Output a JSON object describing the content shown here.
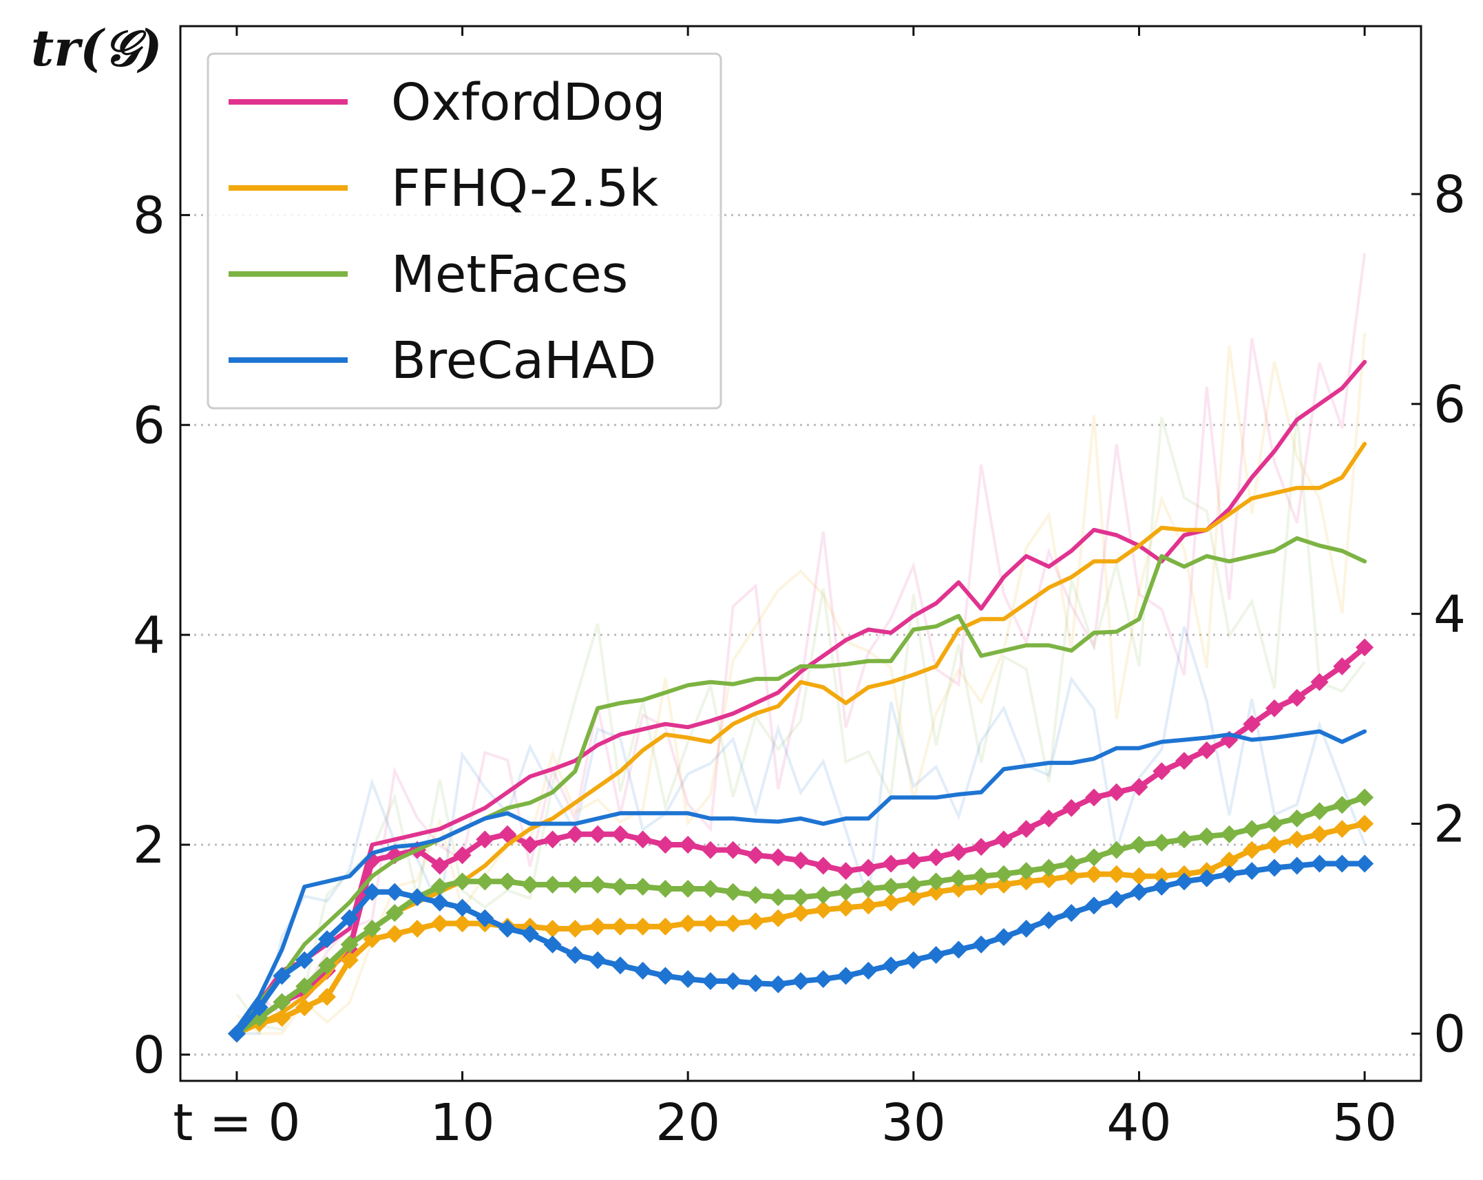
{
  "chart_data": {
    "type": "line",
    "ylabel": "tr(𝒢)",
    "x_tick_labels": [
      "t = 0",
      "10",
      "20",
      "30",
      "40",
      "50"
    ],
    "x_ticks": [
      0,
      10,
      20,
      30,
      40,
      50
    ],
    "xlim": [
      -2.5,
      52.5
    ],
    "y_left_ticks": [
      0,
      2,
      4,
      6,
      8
    ],
    "y_left_tick_labels": [
      "0",
      "2",
      "4",
      "6",
      "8"
    ],
    "ylim_left": [
      -0.25,
      9.8
    ],
    "y_right_ticks": [
      0,
      2,
      4,
      6,
      8
    ],
    "y_right_tick_labels": [
      "0",
      "2",
      "4",
      "6",
      "8"
    ],
    "ylim_right": [
      -0.45,
      9.6
    ],
    "grid": "horizontal dotted at y ticks",
    "legend_position": "top-left",
    "series": [
      {
        "name": "OxfordDog",
        "color": "#e0338f",
        "axis": "left",
        "values": [
          0.2,
          0.35,
          0.5,
          0.6,
          0.8,
          1.0,
          1.85,
          1.9,
          1.95,
          1.8,
          1.9,
          2.05,
          2.1,
          2.0,
          2.05,
          2.1,
          2.1,
          2.1,
          2.05,
          2.0,
          2.0,
          1.95,
          1.95,
          1.9,
          1.88,
          1.85,
          1.8,
          1.75,
          1.78,
          1.82,
          1.85,
          1.88,
          1.93,
          1.98,
          2.05,
          2.15,
          2.25,
          2.35,
          2.45,
          2.5,
          2.55,
          2.7,
          2.8,
          2.9,
          3.0,
          3.15,
          3.3,
          3.4,
          3.55,
          3.7,
          3.88
        ]
      },
      {
        "name": "OxfordDog",
        "color": "#e0338f",
        "axis": "right",
        "values": [
          0.05,
          0.3,
          0.6,
          0.7,
          0.85,
          1.0,
          1.8,
          1.85,
          1.9,
          1.95,
          2.05,
          2.15,
          2.3,
          2.45,
          2.52,
          2.6,
          2.75,
          2.85,
          2.9,
          2.95,
          2.92,
          2.98,
          3.05,
          3.15,
          3.25,
          3.45,
          3.6,
          3.75,
          3.85,
          3.82,
          3.98,
          4.1,
          4.3,
          4.05,
          4.35,
          4.55,
          4.45,
          4.6,
          4.8,
          4.75,
          4.65,
          4.5,
          4.75,
          4.8,
          5.0,
          5.3,
          5.55,
          5.85,
          6.0,
          6.15,
          6.4
        ]
      },
      {
        "name": "FFHQ-2.5k",
        "color": "#f2a80d",
        "axis": "left",
        "values": [
          0.2,
          0.3,
          0.35,
          0.45,
          0.55,
          0.9,
          1.1,
          1.15,
          1.2,
          1.25,
          1.25,
          1.25,
          1.22,
          1.22,
          1.2,
          1.2,
          1.22,
          1.22,
          1.22,
          1.22,
          1.25,
          1.25,
          1.25,
          1.27,
          1.3,
          1.35,
          1.38,
          1.4,
          1.42,
          1.45,
          1.5,
          1.55,
          1.58,
          1.6,
          1.62,
          1.65,
          1.67,
          1.7,
          1.72,
          1.72,
          1.7,
          1.7,
          1.72,
          1.75,
          1.85,
          1.95,
          2.0,
          2.05,
          2.1,
          2.15,
          2.2
        ]
      },
      {
        "name": "FFHQ-2.5k",
        "color": "#f2a80d",
        "axis": "right",
        "values": [
          0.05,
          0.1,
          0.2,
          0.35,
          0.55,
          0.85,
          1.0,
          1.15,
          1.25,
          1.35,
          1.45,
          1.6,
          1.8,
          1.95,
          2.05,
          2.2,
          2.35,
          2.5,
          2.7,
          2.85,
          2.82,
          2.78,
          2.95,
          3.05,
          3.12,
          3.35,
          3.3,
          3.15,
          3.3,
          3.35,
          3.42,
          3.5,
          3.85,
          3.95,
          3.95,
          4.1,
          4.25,
          4.35,
          4.5,
          4.5,
          4.65,
          4.82,
          4.8,
          4.8,
          4.95,
          5.1,
          5.15,
          5.2,
          5.2,
          5.3,
          5.62
        ]
      },
      {
        "name": "MetFaces",
        "color": "#7cb342",
        "axis": "left",
        "values": [
          0.2,
          0.35,
          0.5,
          0.65,
          0.85,
          1.05,
          1.2,
          1.35,
          1.5,
          1.6,
          1.65,
          1.65,
          1.65,
          1.62,
          1.62,
          1.62,
          1.62,
          1.6,
          1.6,
          1.58,
          1.58,
          1.58,
          1.55,
          1.52,
          1.5,
          1.5,
          1.52,
          1.55,
          1.58,
          1.6,
          1.62,
          1.65,
          1.68,
          1.7,
          1.72,
          1.75,
          1.78,
          1.82,
          1.88,
          1.95,
          2.0,
          2.02,
          2.05,
          2.08,
          2.1,
          2.15,
          2.2,
          2.25,
          2.32,
          2.38,
          2.45
        ]
      },
      {
        "name": "MetFaces",
        "color": "#7cb342",
        "axis": "right",
        "values": [
          0.05,
          0.3,
          0.55,
          0.85,
          1.05,
          1.25,
          1.5,
          1.65,
          1.75,
          1.85,
          1.95,
          2.05,
          2.15,
          2.2,
          2.3,
          2.5,
          3.1,
          3.15,
          3.18,
          3.25,
          3.32,
          3.35,
          3.33,
          3.38,
          3.38,
          3.5,
          3.5,
          3.52,
          3.55,
          3.55,
          3.85,
          3.88,
          3.98,
          3.6,
          3.65,
          3.7,
          3.7,
          3.65,
          3.82,
          3.83,
          3.95,
          4.55,
          4.45,
          4.55,
          4.5,
          4.55,
          4.6,
          4.72,
          4.65,
          4.6,
          4.5
        ]
      },
      {
        "name": "BreCaHAD",
        "color": "#1e74d2",
        "axis": "left",
        "values": [
          0.2,
          0.45,
          0.75,
          0.9,
          1.1,
          1.3,
          1.55,
          1.55,
          1.5,
          1.45,
          1.4,
          1.3,
          1.2,
          1.15,
          1.05,
          0.95,
          0.9,
          0.85,
          0.8,
          0.75,
          0.72,
          0.7,
          0.7,
          0.68,
          0.67,
          0.7,
          0.72,
          0.75,
          0.8,
          0.85,
          0.9,
          0.95,
          1.0,
          1.05,
          1.12,
          1.2,
          1.28,
          1.35,
          1.42,
          1.48,
          1.55,
          1.6,
          1.65,
          1.68,
          1.72,
          1.75,
          1.78,
          1.8,
          1.82,
          1.82,
          1.82
        ]
      },
      {
        "name": "BreCaHAD",
        "color": "#1e74d2",
        "axis": "right",
        "values": [
          0.05,
          0.35,
          0.8,
          1.4,
          1.45,
          1.5,
          1.72,
          1.78,
          1.8,
          1.85,
          1.95,
          2.05,
          2.1,
          2.0,
          2.0,
          2.0,
          2.05,
          2.1,
          2.1,
          2.1,
          2.1,
          2.05,
          2.05,
          2.03,
          2.02,
          2.05,
          2.0,
          2.05,
          2.05,
          2.25,
          2.25,
          2.25,
          2.28,
          2.3,
          2.52,
          2.55,
          2.58,
          2.58,
          2.62,
          2.72,
          2.72,
          2.78,
          2.8,
          2.82,
          2.85,
          2.8,
          2.82,
          2.85,
          2.88,
          2.78,
          2.88
        ]
      }
    ]
  }
}
